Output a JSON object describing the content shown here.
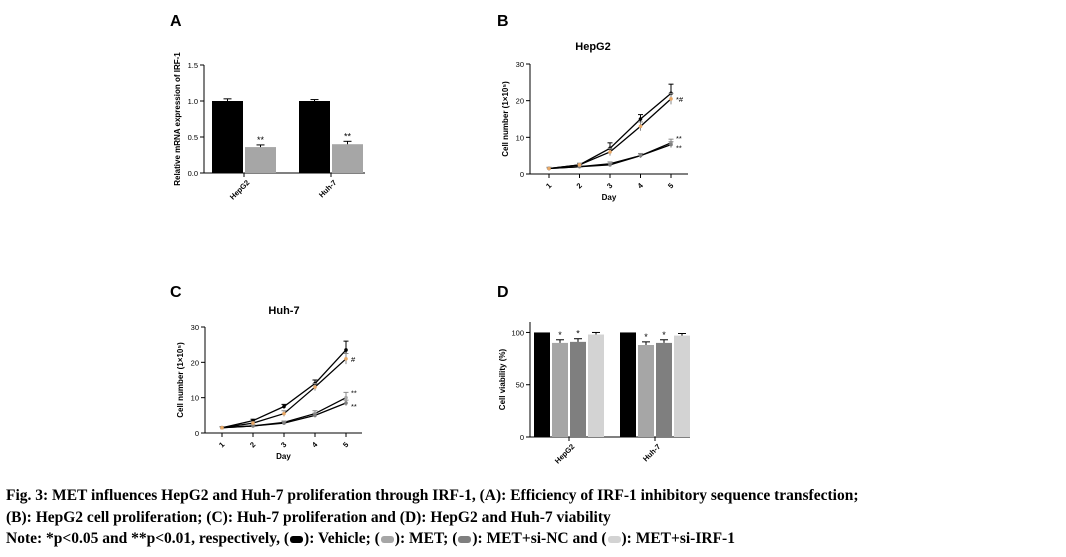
{
  "palette": {
    "vehicle": "#000000",
    "met": "#a6a6a6",
    "met_si_nc": "#7f7f7f",
    "met_si_irf1": "#d3d3d3",
    "marker_orange": "#e8a867"
  },
  "panels": {
    "A": {
      "letter": "A"
    },
    "B": {
      "letter": "B",
      "title": "HepG2"
    },
    "C": {
      "letter": "C",
      "title": "Huh-7"
    },
    "D": {
      "letter": "D"
    }
  },
  "chart_data": [
    {
      "panel": "A",
      "type": "bar",
      "ylabel": "Relative mRNA expression of IRF-1",
      "ylim": [
        0,
        1.5
      ],
      "yticks": [
        "0.0",
        "0.5",
        "1.0",
        "1.5"
      ],
      "categories": [
        "HepG2",
        "Huh-7"
      ],
      "series": [
        {
          "color": "#000000",
          "values": [
            1.0,
            1.0
          ],
          "errors": [
            0.03,
            0.02
          ],
          "annotations": [
            "",
            ""
          ]
        },
        {
          "color": "#a6a6a6",
          "values": [
            0.36,
            0.4
          ],
          "errors": [
            0.03,
            0.04
          ],
          "annotations": [
            "**",
            "**"
          ]
        }
      ]
    },
    {
      "panel": "B",
      "type": "line",
      "title": "HepG2",
      "xlabel": "Day",
      "ylabel": "Cell number (1×10⁵)",
      "x": [
        1,
        2,
        3,
        4,
        5
      ],
      "xticks": [
        "1",
        "2",
        "3",
        "4",
        "5"
      ],
      "ylim": [
        0,
        30
      ],
      "yticks": [
        "0",
        "10",
        "20",
        "30"
      ],
      "series": [
        {
          "color": "#000000",
          "values": [
            1.5,
            2.5,
            7,
            15,
            22
          ],
          "errors": [
            0.3,
            0.4,
            1.5,
            1.2,
            2.5
          ],
          "annotation": ""
        },
        {
          "color": "#a6a6a6",
          "values": [
            1.5,
            2.0,
            2.8,
            5.0,
            8.5
          ],
          "errors": [
            0.2,
            0.3,
            0.5,
            0.6,
            1.0
          ],
          "annotation": "**"
        },
        {
          "color": "#7f7f7f",
          "values": [
            1.5,
            2.0,
            2.5,
            5.0,
            8.0
          ],
          "errors": [
            0.2,
            0.3,
            0.4,
            0.5,
            0.8
          ],
          "annotation": "**"
        },
        {
          "color": "#d3d3d3",
          "values": [
            1.5,
            2.5,
            6,
            13,
            20.5
          ],
          "errors": [
            0.3,
            0.4,
            1.0,
            1.2,
            1.5
          ],
          "annotation": "*#"
        }
      ]
    },
    {
      "panel": "C",
      "type": "line",
      "title": "Huh-7",
      "xlabel": "Day",
      "ylabel": "Cell number (1×10⁵)",
      "x": [
        1,
        2,
        3,
        4,
        5
      ],
      "xticks": [
        "1",
        "2",
        "3",
        "4",
        "5"
      ],
      "ylim": [
        0,
        30
      ],
      "yticks": [
        "0",
        "10",
        "20",
        "30"
      ],
      "series": [
        {
          "color": "#000000",
          "values": [
            1.5,
            3.5,
            7.5,
            14,
            23.5
          ],
          "errors": [
            0.3,
            0.4,
            0.6,
            1.0,
            2.5
          ],
          "annotation": ""
        },
        {
          "color": "#a6a6a6",
          "values": [
            1.5,
            2.0,
            3.0,
            5.5,
            10
          ],
          "errors": [
            0.2,
            0.3,
            0.4,
            0.8,
            1.5
          ],
          "annotation": "**"
        },
        {
          "color": "#7f7f7f",
          "values": [
            1.5,
            2.0,
            2.8,
            5.0,
            8.5
          ],
          "errors": [
            0.2,
            0.3,
            0.4,
            0.6,
            0.8
          ],
          "annotation": "**"
        },
        {
          "color": "#d3d3d3",
          "values": [
            1.5,
            2.8,
            5.5,
            13,
            21
          ],
          "errors": [
            0.3,
            0.4,
            0.8,
            1.0,
            1.5
          ],
          "annotation": "#"
        }
      ]
    },
    {
      "panel": "D",
      "type": "bar",
      "ylabel": "Cell viability (%)",
      "ylim": [
        0,
        110
      ],
      "yticks": [
        "0",
        "50",
        "100"
      ],
      "categories": [
        "HepG2",
        "Huh-7"
      ],
      "series": [
        {
          "color": "#000000",
          "values": [
            100,
            100
          ],
          "errors": [
            0,
            0
          ],
          "annotations": [
            "",
            ""
          ]
        },
        {
          "color": "#a6a6a6",
          "values": [
            90,
            88
          ],
          "errors": [
            3,
            3
          ],
          "annotations": [
            "*",
            "*"
          ]
        },
        {
          "color": "#7f7f7f",
          "values": [
            91,
            90
          ],
          "errors": [
            3,
            3
          ],
          "annotations": [
            "*",
            "*"
          ]
        },
        {
          "color": "#d3d3d3",
          "values": [
            98,
            97
          ],
          "errors": [
            2,
            2
          ],
          "annotations": [
            "",
            ""
          ]
        }
      ]
    }
  ],
  "caption": {
    "line1": "Fig. 3: MET influences HepG2 and Huh-7 proliferation through IRF-1, (A): Efficiency of IRF-1 inhibitory sequence transfection;",
    "line2": "(B): HepG2 cell proliferation; (C): Huh-7 proliferation and (D): HepG2 and Huh-7 viability",
    "note_prefix": "Note: *p<0.05 and **p<0.01, respectively, (",
    "vehicle_text": "): Vehicle; (",
    "met_text": "): MET; (",
    "met_si_nc_text": "): MET+si-NC and (",
    "met_si_irf1_text": "): MET+si-IRF-1"
  }
}
